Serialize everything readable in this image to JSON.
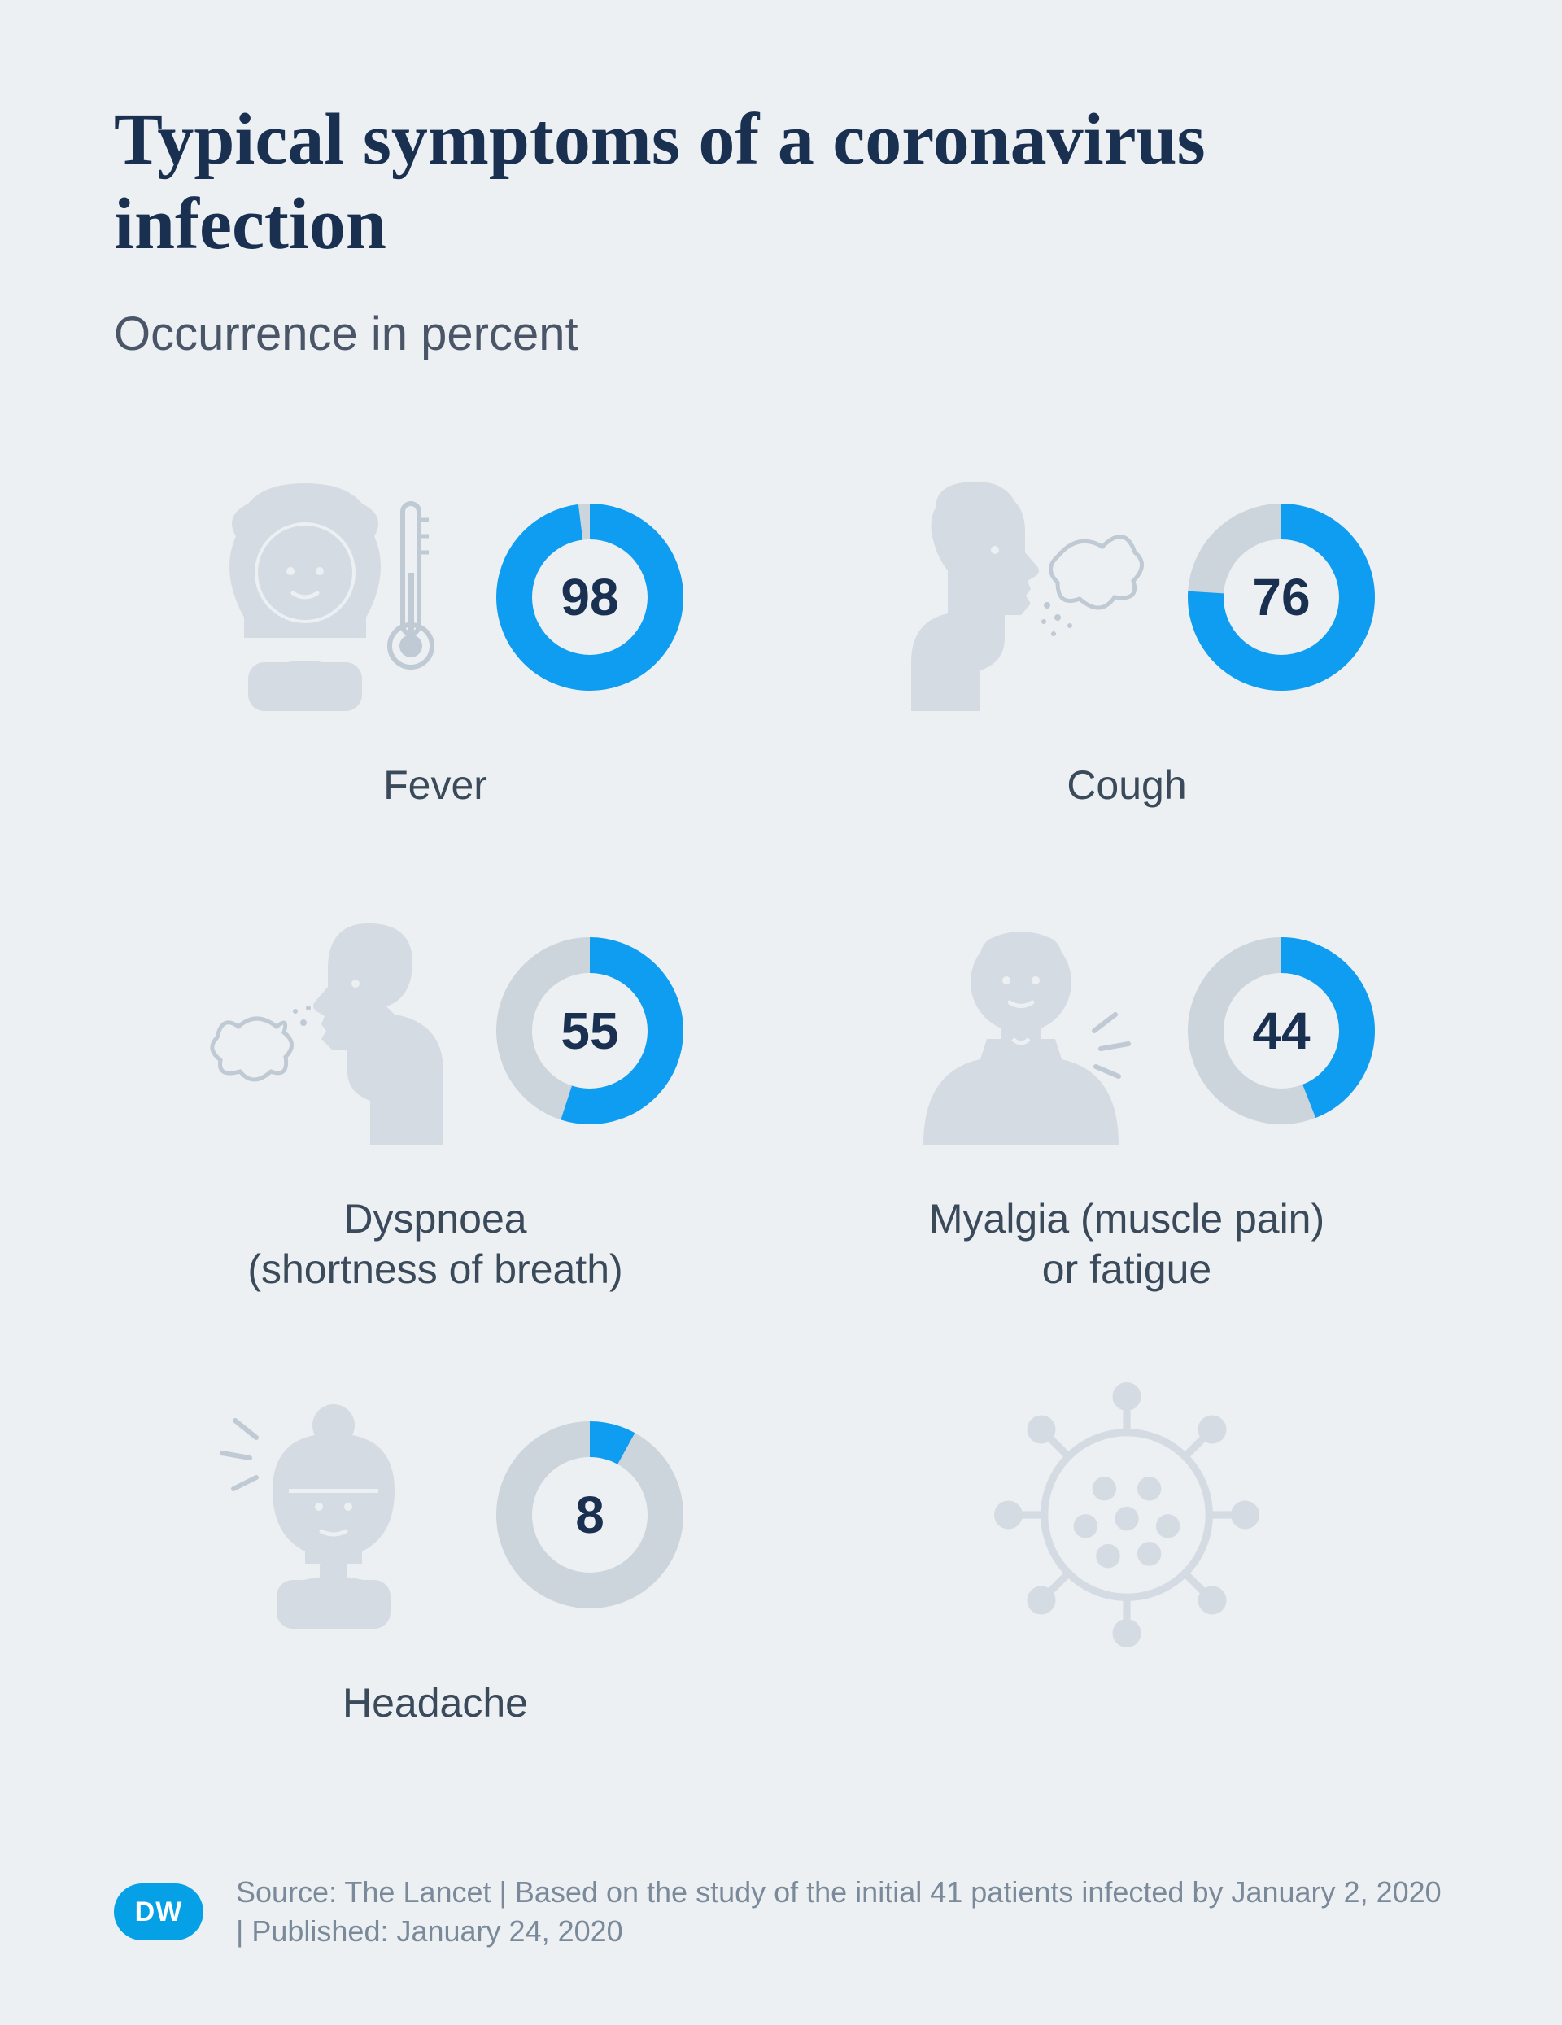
{
  "title": "Typical symptoms of a coronavirus infection",
  "subtitle": "Occurrence in percent",
  "title_fontsize": 90,
  "subtitle_fontsize": 58,
  "label_fontsize": 50,
  "value_fontsize": 64,
  "footer_fontsize": 36,
  "colors": {
    "background": "#edf0f3",
    "title": "#1a3050",
    "subtitle": "#4a5568",
    "label": "#3a4a5a",
    "accent": "#0f9df2",
    "ring_track": "#cdd5dc",
    "icon_fill": "#d4dbe2",
    "icon_darker": "#c0cad4",
    "footer_text": "#7a8a9a",
    "logo_bg": "#05a0e6"
  },
  "donut": {
    "size": 230,
    "stroke_width": 44,
    "start_angle_deg": 0
  },
  "symptoms": [
    {
      "label": "Fever",
      "value": 98,
      "icon": "fever"
    },
    {
      "label": "Cough",
      "value": 76,
      "icon": "cough"
    },
    {
      "label": "Dyspnoea\n(shortness of breath)",
      "value": 55,
      "icon": "dyspnoea"
    },
    {
      "label": "Myalgia (muscle pain)\nor fatigue",
      "value": 44,
      "icon": "myalgia"
    },
    {
      "label": "Headache",
      "value": 8,
      "icon": "headache"
    },
    {
      "label": "",
      "value": null,
      "icon": "virus"
    }
  ],
  "footer": {
    "logo_text": "DW",
    "text": "Source: The Lancet | Based on the study of the initial 41 patients infected by January 2, 2020 | Published: January 24, 2020"
  }
}
